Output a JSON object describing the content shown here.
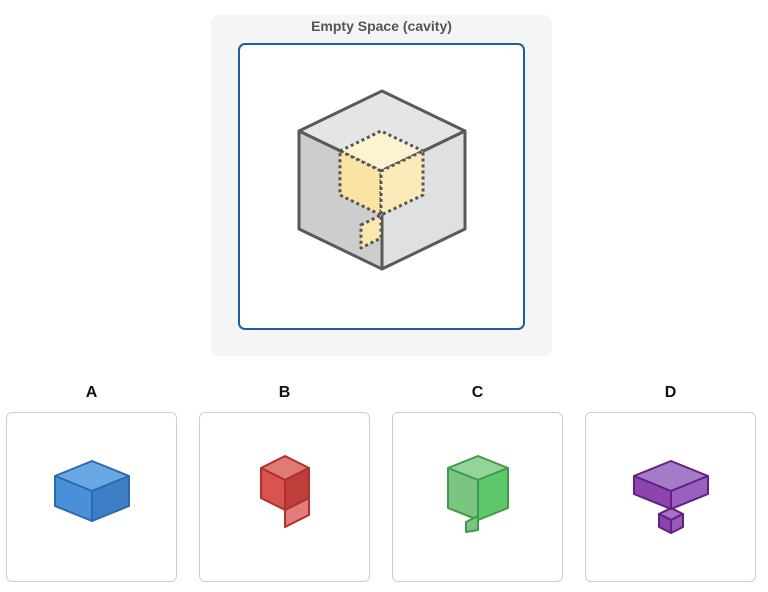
{
  "title": "Empty Space (cavity)",
  "options": [
    {
      "label": "A",
      "color": "#4a90d9"
    },
    {
      "label": "B",
      "color": "#d9534f"
    },
    {
      "label": "C",
      "color": "#5cb85c"
    },
    {
      "label": "D",
      "color": "#8e44ad"
    }
  ]
}
